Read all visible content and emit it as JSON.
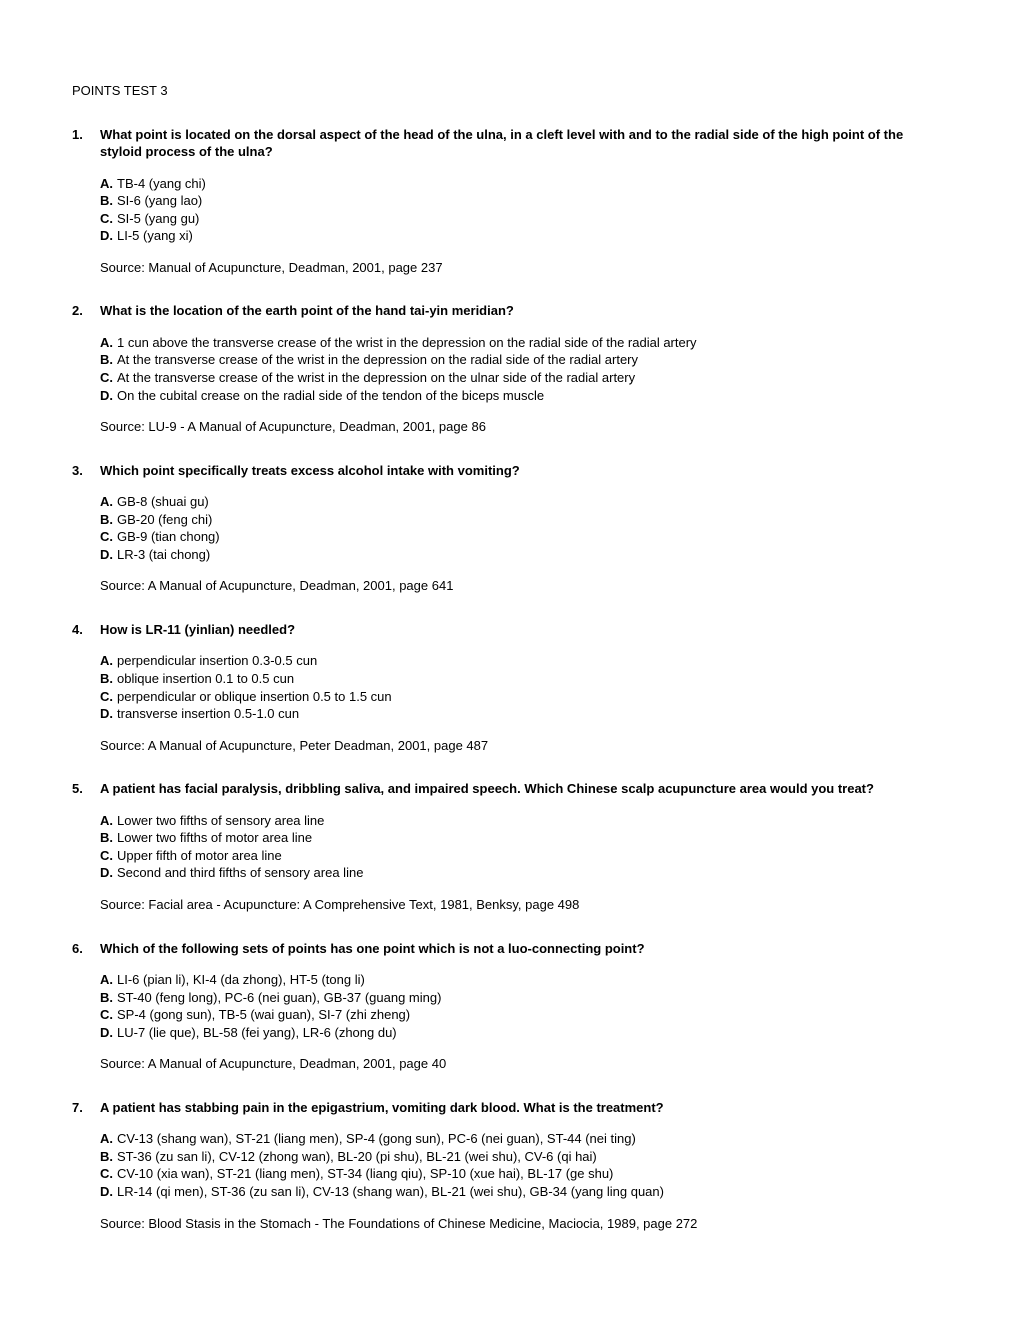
{
  "title": "POINTS TEST 3",
  "questions": [
    {
      "num": "1.",
      "text": "What point is located on the dorsal aspect of the head of the ulna, in a cleft level with and to the radial side of the high point of the styloid process of the ulna?",
      "options": [
        {
          "letter": "A.",
          "text": "TB-4 (yang chi)"
        },
        {
          "letter": "B.",
          "text": "SI-6 (yang lao)"
        },
        {
          "letter": "C.",
          "text": "SI-5 (yang gu)"
        },
        {
          "letter": "D.",
          "text": "LI-5 (yang xi)"
        }
      ],
      "source": "Source: Manual of Acupuncture, Deadman, 2001, page 237"
    },
    {
      "num": "2.",
      "text": "What is the location of the earth point of the hand tai-yin meridian?",
      "options": [
        {
          "letter": "A.",
          "text": "1 cun above the transverse crease of the wrist in the depression on the radial side of the radial artery"
        },
        {
          "letter": "B.",
          "text": "At the transverse crease of the wrist in the depression on the radial side of the radial artery"
        },
        {
          "letter": "C.",
          "text": "At the transverse crease of the wrist in the depression on the ulnar side of the radial artery"
        },
        {
          "letter": "D.",
          "text": "On the cubital crease on the radial side of the tendon of the biceps muscle"
        }
      ],
      "source": "Source: LU-9 - A Manual of Acupuncture, Deadman, 2001, page 86"
    },
    {
      "num": "3.",
      "text": "Which point specifically treats excess alcohol intake with vomiting?",
      "options": [
        {
          "letter": "A.",
          "text": "GB-8 (shuai gu)"
        },
        {
          "letter": "B.",
          "text": "GB-20 (feng chi)"
        },
        {
          "letter": "C.",
          "text": "GB-9 (tian chong)"
        },
        {
          "letter": "D.",
          "text": "LR-3 (tai chong)"
        }
      ],
      "source": "Source: A Manual of Acupuncture, Deadman, 2001, page 641"
    },
    {
      "num": "4.",
      "text": "How is LR-11 (yinlian) needled?",
      "options": [
        {
          "letter": "A.",
          "text": "perpendicular insertion 0.3-0.5 cun"
        },
        {
          "letter": "B.",
          "text": "oblique insertion 0.1 to 0.5 cun"
        },
        {
          "letter": "C.",
          "text": "perpendicular or oblique insertion 0.5 to 1.5 cun"
        },
        {
          "letter": "D.",
          "text": "transverse insertion 0.5-1.0 cun"
        }
      ],
      "source": "Source: A Manual of Acupuncture, Peter Deadman, 2001, page 487"
    },
    {
      "num": "5.",
      "text": "A patient has facial paralysis, dribbling saliva, and impaired speech. Which Chinese scalp acupuncture area would you treat?",
      "options": [
        {
          "letter": "A.",
          "text": "Lower two fifths of sensory area line"
        },
        {
          "letter": "B.",
          "text": "Lower two fifths of motor area line"
        },
        {
          "letter": "C.",
          "text": "Upper fifth of motor area line"
        },
        {
          "letter": "D.",
          "text": "Second and third fifths of sensory area line"
        }
      ],
      "source": "Source: Facial area - Acupuncture: A Comprehensive Text, 1981, Benksy, page 498"
    },
    {
      "num": "6.",
      "text": "Which of the following sets of points has one point which is not a luo-connecting point?",
      "options": [
        {
          "letter": "A.",
          "text": "LI-6 (pian li), KI-4 (da zhong), HT-5 (tong li)"
        },
        {
          "letter": "B.",
          "text": "ST-40 (feng long), PC-6 (nei guan), GB-37 (guang ming)"
        },
        {
          "letter": "C.",
          "text": "SP-4 (gong sun), TB-5 (wai guan), SI-7 (zhi zheng)"
        },
        {
          "letter": "D.",
          "text": "LU-7 (lie que), BL-58 (fei yang), LR-6 (zhong du)"
        }
      ],
      "source": "Source: A Manual of Acupuncture, Deadman, 2001, page 40"
    },
    {
      "num": "7.",
      "text": "A patient has stabbing pain in the epigastrium, vomiting dark blood. What is the treatment?",
      "options": [
        {
          "letter": "A.",
          "text": "CV-13 (shang wan), ST-21 (liang men), SP-4 (gong sun), PC-6 (nei guan), ST-44 (nei ting)"
        },
        {
          "letter": "B.",
          "text": "ST-36 (zu san li), CV-12 (zhong wan), BL-20 (pi shu), BL-21 (wei shu), CV-6 (qi hai)"
        },
        {
          "letter": "C.",
          "text": "CV-10 (xia wan), ST-21 (liang men), ST-34 (liang qiu), SP-10 (xue hai), BL-17 (ge shu)"
        },
        {
          "letter": "D.",
          "text": "LR-14 (qi men), ST-36 (zu san li), CV-13 (shang wan), BL-21 (wei shu), GB-34 (yang ling quan)"
        }
      ],
      "source": "Source: Blood Stasis in the Stomach - The Foundations of Chinese Medicine, Maciocia, 1989, page 272"
    }
  ]
}
